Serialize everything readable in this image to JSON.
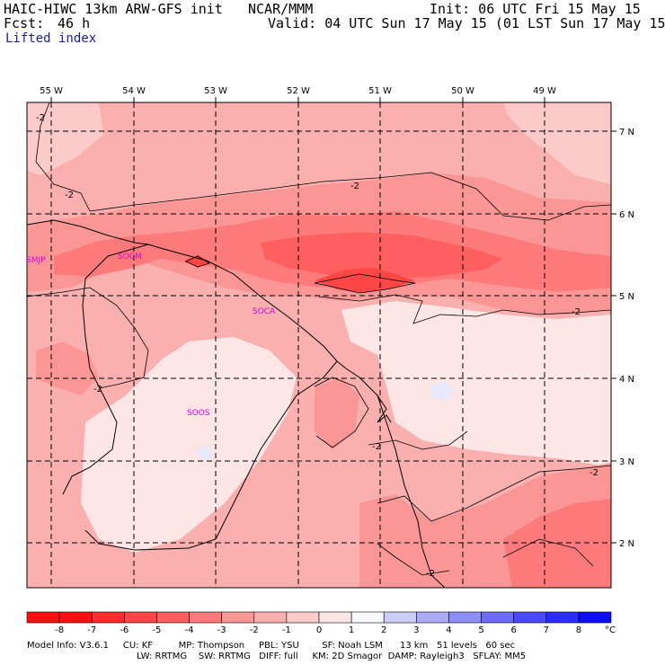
{
  "header": {
    "model": "HAIC-HIWC 13km ARW-GFS init",
    "org": "NCAR/MMM",
    "init": "Init: 06 UTC Fri 15 May 15",
    "fcst_label": "Fcst:",
    "fcst_value": "46 h",
    "valid": "Valid: 04 UTC Sun 17 May 15 (01 LST Sun 17 May 15)",
    "field": "Lifted index"
  },
  "map": {
    "lon_labels": [
      "55 W",
      "54 W",
      "53 W",
      "52 W",
      "51 W",
      "50 W",
      "49 W"
    ],
    "lat_labels": [
      "7 N",
      "6 N",
      "5 N",
      "4 N",
      "3 N",
      "2 N"
    ],
    "contour_labels": [
      "-2",
      "-2",
      "-2",
      "-2",
      "-2",
      "-2",
      "-2",
      "-2"
    ],
    "stations": [
      "SMJP",
      "SOCM",
      "SOCA",
      "SOOS"
    ],
    "station_color": "#dd00dd"
  },
  "colorbar": {
    "labels": [
      "-8",
      "-7",
      "-6",
      "-5",
      "-4",
      "-3",
      "-2",
      "-1",
      "0",
      "1",
      "2",
      "3",
      "4",
      "5",
      "6",
      "7",
      "8"
    ],
    "unit": "°C",
    "colors": [
      "#ff1010",
      "#ff2c2c",
      "#ff4646",
      "#ff5f5f",
      "#ff7a7a",
      "#fb9696",
      "#fbb0b0",
      "#fdcaca",
      "#fee6e6",
      "#f8f8ff",
      "#cccdfa",
      "#aaaaf6",
      "#8d8dfa",
      "#6c6cf9",
      "#4a4afa",
      "#2c2cfa",
      "#0f0ff6"
    ]
  },
  "footer": {
    "line1": "Model Info: V3.6.1     CU: KF         MP: Thompson     PBL: YSU        SF: Noah LSM      13 km   51 levels   60 sec",
    "line2": "LW: RRTMG    SW: RRTMG   DIFF: full     KM: 2D Smagor  DAMP: Rayleigh3   SFLAY: MM5"
  }
}
